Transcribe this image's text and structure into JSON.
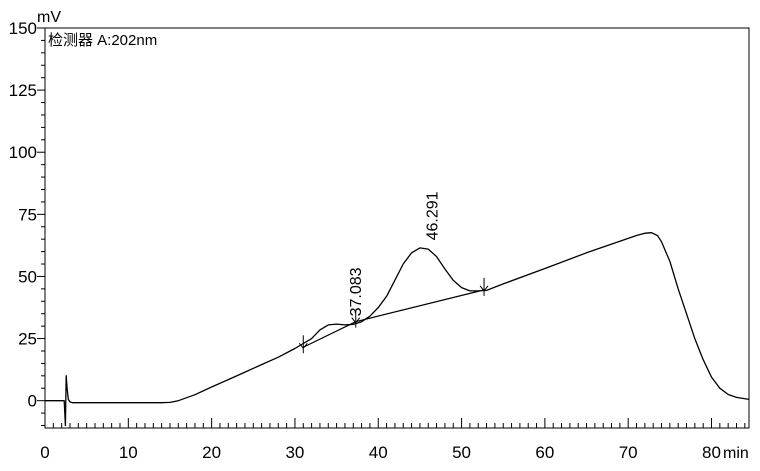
{
  "chart_data": {
    "type": "line",
    "title": "",
    "y_unit_label": "mV",
    "detector_label": "检测器 A:202nm",
    "x_unit_label": "min",
    "xlim": [
      0,
      84.5
    ],
    "ylim": [
      -11,
      150
    ],
    "x_ticks": [
      0,
      10,
      20,
      30,
      40,
      50,
      60,
      70,
      80
    ],
    "x_tick_labels": [
      "0",
      "10",
      "20",
      "30",
      "40",
      "50",
      "60",
      "70",
      "80"
    ],
    "y_ticks": [
      0,
      25,
      50,
      75,
      100,
      125,
      150
    ],
    "y_tick_labels": [
      "0",
      "25",
      "50",
      "75",
      "100",
      "125",
      "150"
    ],
    "series": [
      {
        "x": [
          0.0,
          2.3,
          2.45,
          2.55,
          2.65,
          2.8,
          3.0,
          3.3,
          3.6,
          4.0,
          6.0,
          10.0,
          14.0,
          15.0,
          16.0,
          17.0,
          18.0,
          20.0,
          22.0,
          24.0,
          26.0,
          28.0,
          30.0,
          31.0,
          32.0,
          33.0,
          34.0,
          35.0,
          36.0,
          37.0,
          38.0,
          39.0,
          40.0,
          41.0,
          42.0,
          43.0,
          44.0,
          45.0,
          46.0,
          47.0,
          48.0,
          49.0,
          50.0,
          51.0,
          52.0,
          53.0,
          55.0,
          60.0,
          65.0,
          70.0,
          71.0,
          72.0,
          72.8,
          73.5,
          74.0,
          75.0,
          76.0,
          77.0,
          78.0,
          79.0,
          80.0,
          81.0,
          82.0,
          83.0,
          84.5
        ],
        "y": [
          0.0,
          0.0,
          -10.0,
          10.0,
          5.0,
          0.5,
          -0.5,
          -0.8,
          -0.8,
          -0.8,
          -0.8,
          -0.8,
          -0.8,
          -0.7,
          0.0,
          1.2,
          2.4,
          5.5,
          8.5,
          11.5,
          14.5,
          17.5,
          21.0,
          23.0,
          25.0,
          28.5,
          30.5,
          30.8,
          30.5,
          30.7,
          31.8,
          34.0,
          37.5,
          42.0,
          48.5,
          55.0,
          59.5,
          61.5,
          61.0,
          58.0,
          53.0,
          48.5,
          45.5,
          44.2,
          44.2,
          44.4,
          47.0,
          53.2,
          59.5,
          65.3,
          66.5,
          67.4,
          67.6,
          66.5,
          64.0,
          56.0,
          45.0,
          35.0,
          25.0,
          16.5,
          9.5,
          5.0,
          2.5,
          1.3,
          0.5
        ]
      }
    ],
    "baselines": [
      {
        "x": [
          31.0,
          37.3
        ],
        "y": [
          21.5,
          31.8
        ]
      },
      {
        "x": [
          37.3,
          52.7
        ],
        "y": [
          31.8,
          44.6
        ]
      }
    ],
    "peaks": [
      {
        "label": "37.083",
        "x": 37.083,
        "y": 30.7
      },
      {
        "label": "46.291",
        "x": 46.291,
        "y": 61.3
      }
    ],
    "peak_markers": [
      {
        "x": 31.0,
        "y": 21.5
      },
      {
        "x": 37.3,
        "y": 31.8
      },
      {
        "x": 52.7,
        "y": 44.6
      }
    ],
    "grid": false
  }
}
